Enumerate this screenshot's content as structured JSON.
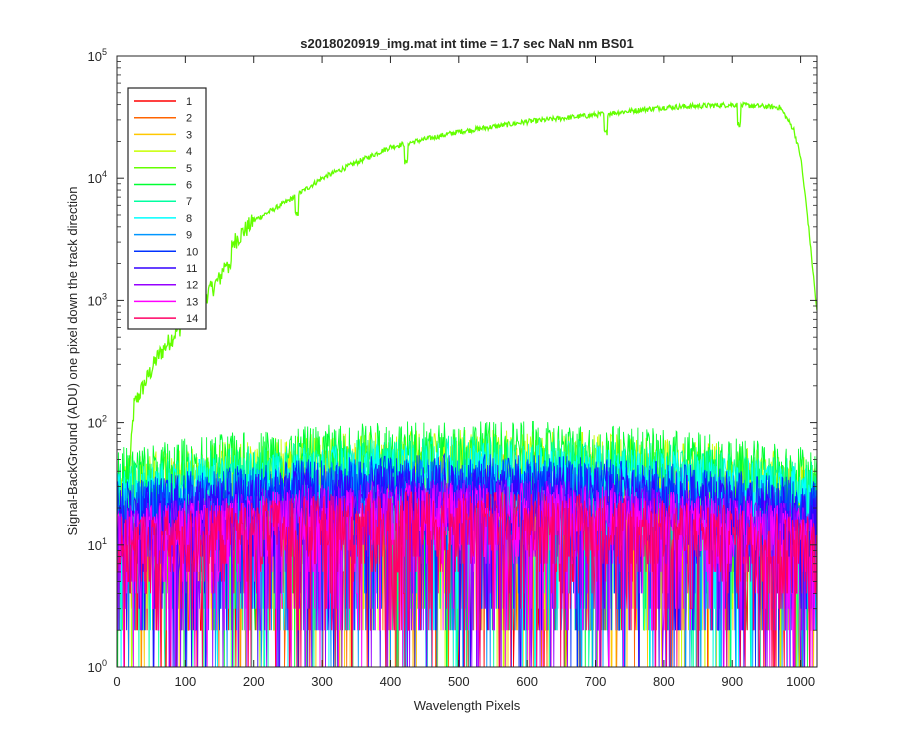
{
  "chart_data": {
    "type": "line",
    "title": "s2018020919_img.mat int time = 1.7 sec  NaN nm BS01",
    "xlabel": "Wavelength Pixels",
    "ylabel": "Signal-BackGround (ADU) one pixel down the track direction",
    "xlim": [
      0,
      1024
    ],
    "ylim": [
      1,
      100000
    ],
    "yscale": "log",
    "x_ticks": [
      "0",
      "100",
      "200",
      "300",
      "400",
      "500",
      "600",
      "700",
      "800",
      "900",
      "1000"
    ],
    "x_tick_values": [
      0,
      100,
      200,
      300,
      400,
      500,
      600,
      700,
      800,
      900,
      1000
    ],
    "y_ticks": [
      {
        "base": "10",
        "exp": "0",
        "value": 1
      },
      {
        "base": "10",
        "exp": "1",
        "value": 10
      },
      {
        "base": "10",
        "exp": "2",
        "value": 100
      },
      {
        "base": "10",
        "exp": "3",
        "value": 1000
      },
      {
        "base": "10",
        "exp": "4",
        "value": 10000
      },
      {
        "base": "10",
        "exp": "5",
        "value": 100000
      }
    ],
    "legend_position": "top-left",
    "series": [
      {
        "name": "1",
        "color": "#ff0000",
        "level": 12,
        "profile": "noise"
      },
      {
        "name": "2",
        "color": "#ff6400",
        "level": 14,
        "profile": "noise"
      },
      {
        "name": "3",
        "color": "#ffc800",
        "level": 30,
        "profile": "noise"
      },
      {
        "name": "4",
        "color": "#c8ff00",
        "level": 38,
        "profile": "noise"
      },
      {
        "name": "5",
        "color": "#64ff00",
        "level": 40000,
        "profile": "signal",
        "key_points": [
          [
            18,
            40
          ],
          [
            25,
            140
          ],
          [
            60,
            350
          ],
          [
            100,
            700
          ],
          [
            150,
            1500
          ],
          [
            170,
            3000
          ],
          [
            200,
            4500
          ],
          [
            250,
            6500
          ],
          [
            300,
            10000
          ],
          [
            400,
            18000
          ],
          [
            500,
            24000
          ],
          [
            600,
            29000
          ],
          [
            700,
            33000
          ],
          [
            800,
            38000
          ],
          [
            900,
            40000
          ],
          [
            970,
            38000
          ],
          [
            990,
            25000
          ],
          [
            1000,
            15000
          ],
          [
            1010,
            5000
          ],
          [
            1024,
            800
          ]
        ]
      },
      {
        "name": "6",
        "color": "#00ff32",
        "level": 45,
        "profile": "noise"
      },
      {
        "name": "7",
        "color": "#00ffa0",
        "level": 34,
        "profile": "noise"
      },
      {
        "name": "8",
        "color": "#00ffff",
        "level": 30,
        "profile": "noise"
      },
      {
        "name": "9",
        "color": "#0096ff",
        "level": 22,
        "profile": "noise"
      },
      {
        "name": "10",
        "color": "#0032ff",
        "level": 24,
        "profile": "noise"
      },
      {
        "name": "11",
        "color": "#3200ff",
        "level": 20,
        "profile": "noise"
      },
      {
        "name": "12",
        "color": "#9600ff",
        "level": 15,
        "profile": "noise"
      },
      {
        "name": "13",
        "color": "#ff00ff",
        "level": 14,
        "profile": "noise"
      },
      {
        "name": "14",
        "color": "#ff0064",
        "level": 12,
        "profile": "noise"
      }
    ]
  }
}
